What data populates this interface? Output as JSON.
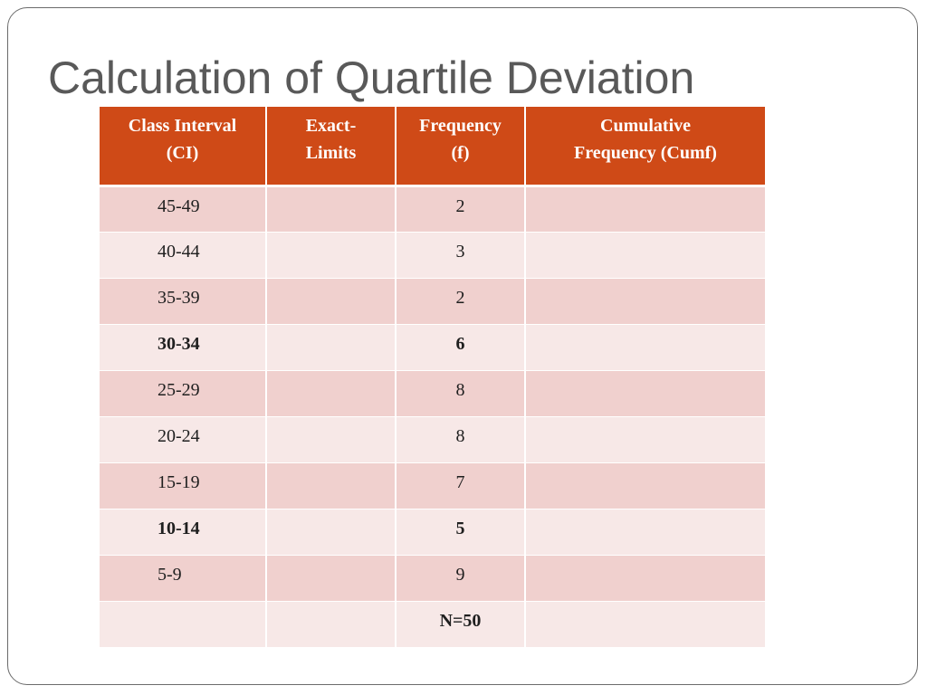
{
  "slide": {
    "title": "Calculation of Quartile Deviation"
  },
  "table": {
    "headers": [
      [
        "Class Interval",
        "(CI)"
      ],
      [
        "Exact-",
        "Limits"
      ],
      [
        "Frequency",
        "(f)"
      ],
      [
        "Cumulative",
        "Frequency (Cumf)"
      ]
    ],
    "rows": [
      {
        "ci": "45-49",
        "exact_limits": "",
        "f": "2",
        "cumf": "",
        "bold": false
      },
      {
        "ci": "40-44",
        "exact_limits": "",
        "f": "3",
        "cumf": "",
        "bold": false
      },
      {
        "ci": "35-39",
        "exact_limits": "",
        "f": "2",
        "cumf": "",
        "bold": false
      },
      {
        "ci": "30-34",
        "exact_limits": "",
        "f": "6",
        "cumf": "",
        "bold": true
      },
      {
        "ci": "25-29",
        "exact_limits": "",
        "f": "8",
        "cumf": "",
        "bold": false
      },
      {
        "ci": "20-24",
        "exact_limits": "",
        "f": "8",
        "cumf": "",
        "bold": false
      },
      {
        "ci": "15-19",
        "exact_limits": "",
        "f": "7",
        "cumf": "",
        "bold": false
      },
      {
        "ci": "10-14",
        "exact_limits": "",
        "f": "5",
        "cumf": "",
        "bold": true
      },
      {
        "ci": "5-9",
        "exact_limits": "",
        "f": "9",
        "cumf": "",
        "bold": false
      }
    ],
    "total": {
      "label": "N=50"
    }
  },
  "colors": {
    "header_bg": "#cf4a17",
    "row_dark": "#f0d0ce",
    "row_light": "#f7e8e7",
    "title": "#595959"
  }
}
